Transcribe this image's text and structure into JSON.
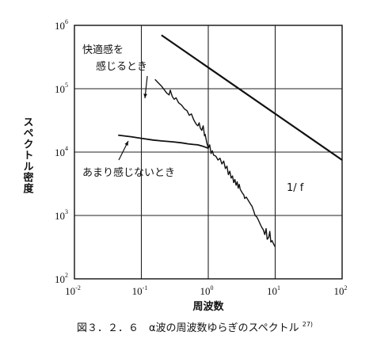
{
  "chart_data": {
    "type": "line",
    "xscale": "log",
    "yscale": "log",
    "xlim": [
      0.01,
      100
    ],
    "ylim": [
      100,
      1000000
    ],
    "grid": true,
    "x_ticks": [
      {
        "base": "10",
        "exp": "-2"
      },
      {
        "base": "10",
        "exp": "-1"
      },
      {
        "base": "10",
        "exp": "0"
      },
      {
        "base": "10",
        "exp": "1"
      },
      {
        "base": "10",
        "exp": "2"
      }
    ],
    "y_ticks": [
      {
        "base": "10",
        "exp": "2"
      },
      {
        "base": "10",
        "exp": "3"
      },
      {
        "base": "10",
        "exp": "4"
      },
      {
        "base": "10",
        "exp": "5"
      },
      {
        "base": "10",
        "exp": "6"
      }
    ],
    "xlabel": "周波数",
    "ylabel": "スペクトル密度",
    "series": [
      {
        "x": [
          0.16,
          0.2,
          0.24,
          0.27,
          0.3,
          0.34,
          0.4,
          0.48,
          0.56,
          0.62,
          0.7,
          0.75,
          0.8,
          0.85,
          0.9,
          0.95,
          1.0,
          1.1,
          1.25,
          1.4,
          1.6,
          1.8,
          2.0,
          2.3,
          2.6,
          3.0,
          3.5,
          4.0,
          4.5,
          5.0,
          5.5,
          6.0,
          6.5,
          7.0,
          8.0,
          9.0,
          10.0
        ],
        "y": [
          140000,
          110000,
          85000,
          80000,
          70000,
          68000,
          55000,
          45000,
          38000,
          30000,
          26000,
          24000,
          22000,
          17000,
          14000,
          12500,
          11500,
          9500,
          9000,
          7500,
          6500,
          5500,
          4400,
          3800,
          3000,
          2600,
          1850,
          1700,
          1400,
          1000,
          850,
          720,
          600,
          500,
          450,
          400,
          320
        ],
        "raw_points": [
          [
            0.16,
            140000
          ],
          [
            0.2,
            110000
          ],
          [
            0.24,
            85000
          ],
          [
            0.26,
            80000
          ],
          [
            0.27,
            95000
          ],
          [
            0.29,
            75000
          ],
          [
            0.31,
            68000
          ],
          [
            0.33,
            72000
          ],
          [
            0.36,
            60000
          ],
          [
            0.4,
            55000
          ],
          [
            0.44,
            48000
          ],
          [
            0.48,
            45000
          ],
          [
            0.52,
            38000
          ],
          [
            0.56,
            40000
          ],
          [
            0.6,
            33000
          ],
          [
            0.63,
            30000
          ],
          [
            0.67,
            27000
          ],
          [
            0.7,
            26000
          ],
          [
            0.73,
            29000
          ],
          [
            0.76,
            24000
          ],
          [
            0.8,
            22000
          ],
          [
            0.84,
            26000
          ],
          [
            0.88,
            18000
          ],
          [
            0.9,
            19000
          ],
          [
            0.95,
            14000
          ],
          [
            0.98,
            12500
          ],
          [
            1.0,
            11500
          ],
          [
            1.05,
            13000
          ],
          [
            1.1,
            9500
          ],
          [
            1.15,
            10500
          ],
          [
            1.2,
            9000
          ],
          [
            1.3,
            8600
          ],
          [
            1.4,
            7500
          ],
          [
            1.5,
            8000
          ],
          [
            1.6,
            6500
          ],
          [
            1.7,
            7200
          ],
          [
            1.8,
            5500
          ],
          [
            1.9,
            6000
          ],
          [
            2.0,
            4400
          ],
          [
            2.1,
            5000
          ],
          [
            2.2,
            3900
          ],
          [
            2.3,
            4200
          ],
          [
            2.4,
            3300
          ],
          [
            2.5,
            3700
          ],
          [
            2.6,
            3000
          ],
          [
            2.7,
            3400
          ],
          [
            2.8,
            2700
          ],
          [
            2.9,
            3100
          ],
          [
            3.0,
            2600
          ],
          [
            3.2,
            2300
          ],
          [
            3.4,
            2100
          ],
          [
            3.5,
            1850
          ],
          [
            3.7,
            1950
          ],
          [
            4.0,
            1700
          ],
          [
            4.3,
            1500
          ],
          [
            4.5,
            1400
          ],
          [
            4.8,
            1150
          ],
          [
            5.0,
            1000
          ],
          [
            5.3,
            950
          ],
          [
            5.6,
            850
          ],
          [
            6.0,
            720
          ],
          [
            6.3,
            650
          ],
          [
            6.6,
            600
          ],
          [
            7.0,
            500
          ],
          [
            7.3,
            620
          ],
          [
            7.6,
            420
          ],
          [
            8.0,
            450
          ],
          [
            8.3,
            560
          ],
          [
            8.6,
            380
          ],
          [
            9.0,
            400
          ],
          [
            9.4,
            360
          ],
          [
            10.0,
            320
          ]
        ]
      },
      {
        "x": [
          0.045,
          0.07,
          0.1,
          0.15,
          0.2,
          0.3,
          0.4,
          0.5,
          0.6,
          0.7,
          0.8,
          0.9,
          1.0
        ],
        "y": [
          18500,
          17500,
          16500,
          15500,
          15000,
          14500,
          14000,
          13500,
          13200,
          13000,
          12500,
          12000,
          11500
        ]
      },
      {
        "x": [
          0.2,
          100
        ],
        "y": [
          700000,
          7500
        ]
      }
    ],
    "annotations": [
      {
        "lines": [
          "快適感を",
          "感じるとき"
        ]
      },
      {
        "text": "あまり感じないとき"
      },
      {
        "text": "1/ f"
      }
    ]
  },
  "caption": {
    "text": "図３．２．６　α波の周波数ゆらぎのスペクトル",
    "ref": "27)"
  }
}
